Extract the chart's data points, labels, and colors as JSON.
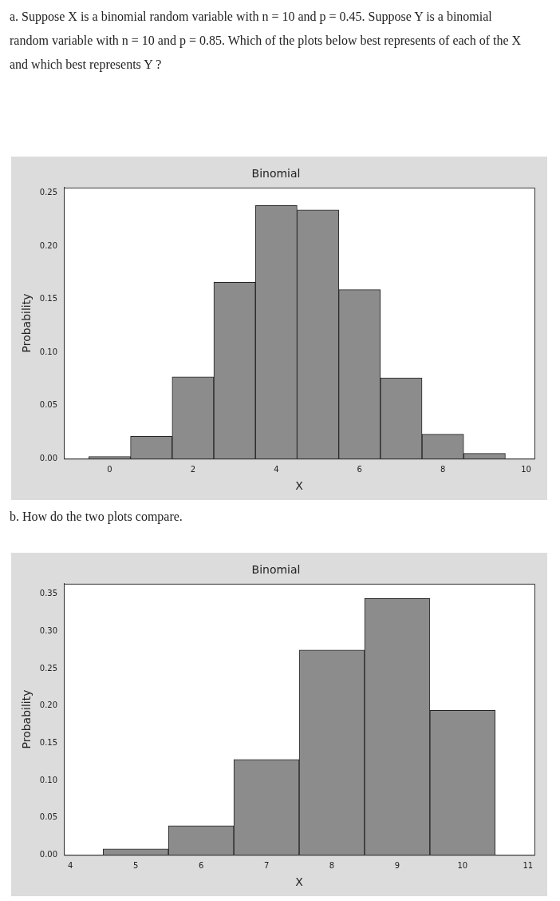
{
  "chart_data": [
    {
      "type": "histogram",
      "title": "Binomial",
      "xlabel": "X",
      "ylabel": "Probability",
      "annotations": [
        "a. Suppose X is a binomial random variable with n = 10 and p = 0.45. Suppose Y is a binomial random variable with n = 10 and p = 0.85. Which of the plots below best represents of each of the X and which best represents Y ?"
      ],
      "bins": [
        -0.5,
        0.5,
        1.5,
        2.5,
        3.5,
        4.5,
        5.5,
        6.5,
        7.5,
        8.5,
        9.5
      ],
      "values": [
        0.002,
        0.021,
        0.077,
        0.166,
        0.238,
        0.234,
        0.159,
        0.076,
        0.023,
        0.005
      ],
      "color": "#8c8c8c",
      "xlim": [
        -1.1,
        10.2
      ],
      "xticks": [
        0,
        2,
        4,
        6,
        8,
        10
      ],
      "ylim": [
        0,
        0.255
      ],
      "yticks": [
        {
          "value": 0,
          "label": "0.00"
        },
        {
          "value": 0.05,
          "label": "0.05"
        },
        {
          "value": 0.1,
          "label": "0.10"
        },
        {
          "value": 0.15,
          "label": "0.15"
        },
        {
          "value": 0.2,
          "label": "0.20"
        },
        {
          "value": 0.25,
          "label": "0.25"
        }
      ],
      "grid": false,
      "legend": false
    },
    {
      "type": "histogram",
      "title": "Binomial",
      "xlabel": "X",
      "ylabel": "Probability",
      "annotations": [
        "b. How do the two plots compare."
      ],
      "bins": [
        4.5,
        5.5,
        6.5,
        7.5,
        8.5,
        9.5,
        10.5
      ],
      "values": [
        0.008,
        0.039,
        0.128,
        0.275,
        0.344,
        0.194
      ],
      "color": "#8c8c8c",
      "xlim": [
        3.9,
        11.1
      ],
      "xticks": [
        4,
        5,
        6,
        7,
        8,
        9,
        10,
        11
      ],
      "ylim": [
        0,
        0.364
      ],
      "yticks": [
        {
          "value": 0,
          "label": "0.00"
        },
        {
          "value": 0.05,
          "label": "0.05"
        },
        {
          "value": 0.1,
          "label": "0.10"
        },
        {
          "value": 0.15,
          "label": "0.15"
        },
        {
          "value": 0.2,
          "label": "0.20"
        },
        {
          "value": 0.25,
          "label": "0.25"
        },
        {
          "value": 0.3,
          "label": "0.30"
        },
        {
          "value": 0.35,
          "label": "0.35"
        }
      ],
      "grid": false,
      "legend": false
    }
  ]
}
